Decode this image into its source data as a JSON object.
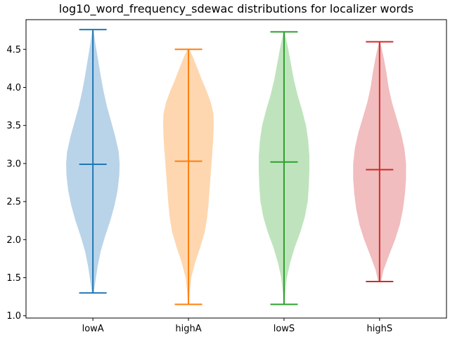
{
  "chart_data": {
    "type": "violin",
    "title": "log10_word_frequency_sdewac distributions for localizer words",
    "xlabel": "",
    "ylabel": "",
    "ylim": [
      0.97,
      4.89
    ],
    "yticks": [
      "1.0",
      "1.5",
      "2.0",
      "2.5",
      "3.0",
      "3.5",
      "4.0",
      "4.5"
    ],
    "grid": false,
    "categories": [
      "lowA",
      "highA",
      "lowS",
      "highS"
    ],
    "series": [
      {
        "color": "#1f77b4",
        "fill": "#b9d4e9",
        "min": 1.3,
        "max": 4.76,
        "mean": 2.99,
        "density": [
          [
            1.3,
            0.03
          ],
          [
            1.45,
            0.09
          ],
          [
            1.65,
            0.17
          ],
          [
            1.85,
            0.28
          ],
          [
            2.05,
            0.44
          ],
          [
            2.25,
            0.62
          ],
          [
            2.45,
            0.77
          ],
          [
            2.65,
            0.88
          ],
          [
            2.85,
            0.94
          ],
          [
            3.0,
            0.95
          ],
          [
            3.15,
            0.92
          ],
          [
            3.35,
            0.8
          ],
          [
            3.55,
            0.65
          ],
          [
            3.75,
            0.5
          ],
          [
            3.95,
            0.38
          ],
          [
            4.15,
            0.28
          ],
          [
            4.35,
            0.19
          ],
          [
            4.55,
            0.1
          ],
          [
            4.76,
            0.02
          ]
        ]
      },
      {
        "color": "#ff7f0e",
        "fill": "#fed7b0",
        "min": 1.15,
        "max": 4.5,
        "mean": 3.03,
        "density": [
          [
            1.15,
            0.02
          ],
          [
            1.3,
            0.04
          ],
          [
            1.5,
            0.1
          ],
          [
            1.7,
            0.24
          ],
          [
            1.9,
            0.42
          ],
          [
            2.1,
            0.58
          ],
          [
            2.3,
            0.67
          ],
          [
            2.5,
            0.72
          ],
          [
            2.7,
            0.76
          ],
          [
            2.9,
            0.8
          ],
          [
            3.1,
            0.84
          ],
          [
            3.3,
            0.88
          ],
          [
            3.5,
            0.9
          ],
          [
            3.65,
            0.89
          ],
          [
            3.8,
            0.8
          ],
          [
            3.95,
            0.65
          ],
          [
            4.1,
            0.48
          ],
          [
            4.25,
            0.32
          ],
          [
            4.4,
            0.16
          ],
          [
            4.5,
            0.04
          ]
        ]
      },
      {
        "color": "#2ca02c",
        "fill": "#bfe4bd",
        "min": 1.15,
        "max": 4.73,
        "mean": 3.02,
        "density": [
          [
            1.15,
            0.02
          ],
          [
            1.3,
            0.04
          ],
          [
            1.5,
            0.1
          ],
          [
            1.7,
            0.22
          ],
          [
            1.9,
            0.38
          ],
          [
            2.1,
            0.58
          ],
          [
            2.3,
            0.74
          ],
          [
            2.5,
            0.84
          ],
          [
            2.7,
            0.88
          ],
          [
            2.9,
            0.9
          ],
          [
            3.1,
            0.9
          ],
          [
            3.3,
            0.86
          ],
          [
            3.5,
            0.78
          ],
          [
            3.7,
            0.64
          ],
          [
            3.9,
            0.48
          ],
          [
            4.1,
            0.35
          ],
          [
            4.3,
            0.25
          ],
          [
            4.5,
            0.15
          ],
          [
            4.73,
            0.02
          ]
        ]
      },
      {
        "color": "#d62728",
        "fill": "#f1bdbe",
        "min": 1.45,
        "max": 4.6,
        "mean": 2.92,
        "density": [
          [
            1.45,
            0.05
          ],
          [
            1.6,
            0.14
          ],
          [
            1.8,
            0.34
          ],
          [
            2.0,
            0.55
          ],
          [
            2.2,
            0.72
          ],
          [
            2.4,
            0.83
          ],
          [
            2.6,
            0.9
          ],
          [
            2.8,
            0.94
          ],
          [
            3.0,
            0.94
          ],
          [
            3.2,
            0.88
          ],
          [
            3.4,
            0.76
          ],
          [
            3.6,
            0.6
          ],
          [
            3.8,
            0.44
          ],
          [
            4.0,
            0.32
          ],
          [
            4.2,
            0.24
          ],
          [
            4.4,
            0.14
          ],
          [
            4.6,
            0.02
          ]
        ]
      }
    ]
  }
}
